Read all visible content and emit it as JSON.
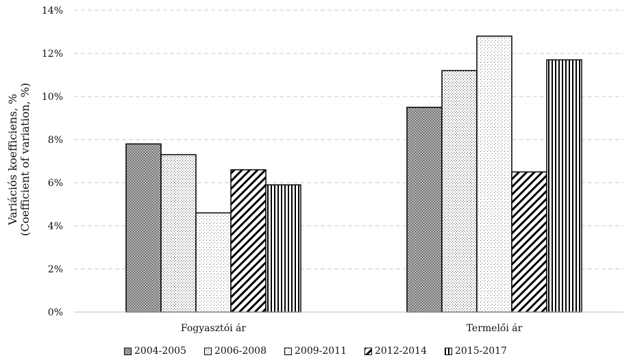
{
  "chart_data": {
    "type": "bar",
    "categories": [
      "Fogyasztói ár",
      "Termelői ár"
    ],
    "series": [
      {
        "name": "2004-2005",
        "values": [
          7.8,
          9.5
        ],
        "pattern": "p0"
      },
      {
        "name": "2006-2008",
        "values": [
          7.3,
          11.2
        ],
        "pattern": "p1"
      },
      {
        "name": "2009-2011",
        "values": [
          4.6,
          12.8
        ],
        "pattern": "p2"
      },
      {
        "name": "2012-2014",
        "values": [
          6.6,
          6.5
        ],
        "pattern": "p3"
      },
      {
        "name": "2015-2017",
        "values": [
          5.9,
          11.7
        ],
        "pattern": "p4"
      }
    ],
    "ylabel_line1": "Variációs koefficiens, %",
    "ylabel_line2": "(Coefficient of variation, %)",
    "ylim": [
      0,
      14
    ],
    "yticks": [
      0,
      2,
      4,
      6,
      8,
      10,
      12,
      14
    ],
    "ytick_labels": [
      "0%",
      "2%",
      "4%",
      "6%",
      "8%",
      "10%",
      "12%",
      "14%"
    ],
    "grid": true,
    "legend_position": "bottom"
  }
}
